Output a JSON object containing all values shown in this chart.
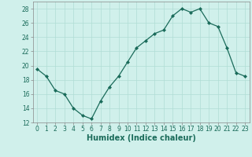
{
  "x": [
    0,
    1,
    2,
    3,
    4,
    5,
    6,
    7,
    8,
    9,
    10,
    11,
    12,
    13,
    14,
    15,
    16,
    17,
    18,
    19,
    20,
    21,
    22,
    23
  ],
  "y": [
    19.5,
    18.5,
    16.5,
    16.0,
    14.0,
    13.0,
    12.5,
    15.0,
    17.0,
    18.5,
    20.5,
    22.5,
    23.5,
    24.5,
    25.0,
    27.0,
    28.0,
    27.5,
    28.0,
    26.0,
    25.5,
    22.5,
    19.0,
    18.5
  ],
  "line_color": "#1a6b5a",
  "marker": "D",
  "marker_size": 2.0,
  "bg_color": "#d0f0eb",
  "grid_color": "#b0ddd5",
  "xlabel": "Humidex (Indice chaleur)",
  "xlim": [
    -0.5,
    23.5
  ],
  "ylim": [
    12,
    29
  ],
  "yticks": [
    12,
    14,
    16,
    18,
    20,
    22,
    24,
    26,
    28
  ],
  "xticks": [
    0,
    1,
    2,
    3,
    4,
    5,
    6,
    7,
    8,
    9,
    10,
    11,
    12,
    13,
    14,
    15,
    16,
    17,
    18,
    19,
    20,
    21,
    22,
    23
  ],
  "tick_label_size": 5.5,
  "xlabel_size": 7,
  "spine_color": "#888888"
}
